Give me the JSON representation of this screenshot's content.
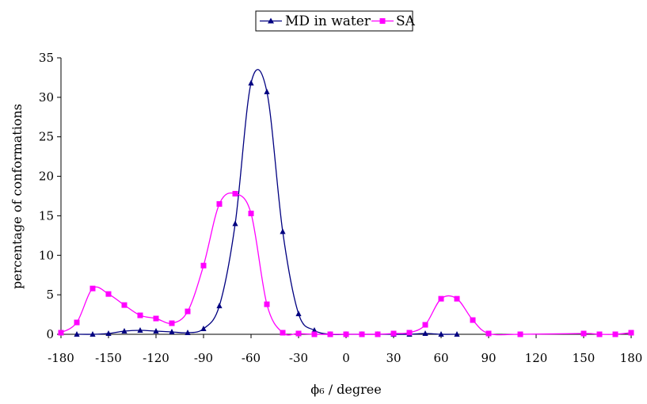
{
  "chart_data": {
    "type": "line",
    "title": "",
    "xlabel": "ϕ₆ / degree",
    "ylabel": "percentage of conformations",
    "xlim": [
      -180,
      180
    ],
    "ylim": [
      0,
      35
    ],
    "xticks": [
      -180,
      -150,
      -120,
      -90,
      -60,
      -30,
      0,
      30,
      60,
      90,
      120,
      150,
      180
    ],
    "yticks": [
      0,
      5,
      10,
      15,
      20,
      25,
      30,
      35
    ],
    "grid": false,
    "legend_position": "top-center",
    "series": [
      {
        "name": "MD in water",
        "color": "#000080",
        "marker": "triangle",
        "x": [
          -170,
          -160,
          -150,
          -140,
          -130,
          -120,
          -110,
          -100,
          -90,
          -80,
          -70,
          -60,
          -50,
          -40,
          -30,
          -20,
          -10,
          0,
          10,
          20,
          30,
          40,
          50,
          60,
          70
        ],
        "y": [
          0.0,
          0.0,
          0.1,
          0.4,
          0.5,
          0.4,
          0.3,
          0.2,
          0.7,
          3.6,
          14.0,
          31.8,
          30.7,
          13.0,
          2.6,
          0.5,
          0.0,
          0.0,
          0.0,
          0.0,
          0.0,
          0.0,
          0.1,
          0.0,
          0.0
        ]
      },
      {
        "name": "SA",
        "color": "#ff00ff",
        "marker": "square",
        "x": [
          -180,
          -170,
          -160,
          -150,
          -140,
          -130,
          -120,
          -110,
          -100,
          -90,
          -80,
          -70,
          -60,
          -50,
          -40,
          -30,
          -20,
          -10,
          0,
          10,
          20,
          30,
          40,
          50,
          60,
          70,
          80,
          90,
          110,
          150,
          160,
          170,
          180
        ],
        "y": [
          0.2,
          1.5,
          5.8,
          5.1,
          3.7,
          2.4,
          2.0,
          1.4,
          2.9,
          8.7,
          16.5,
          17.8,
          15.3,
          3.8,
          0.2,
          0.1,
          0.0,
          0.0,
          0.0,
          0.0,
          0.0,
          0.1,
          0.2,
          1.2,
          4.5,
          4.5,
          1.8,
          0.1,
          0.0,
          0.1,
          0.0,
          0.0,
          0.2
        ]
      }
    ]
  }
}
